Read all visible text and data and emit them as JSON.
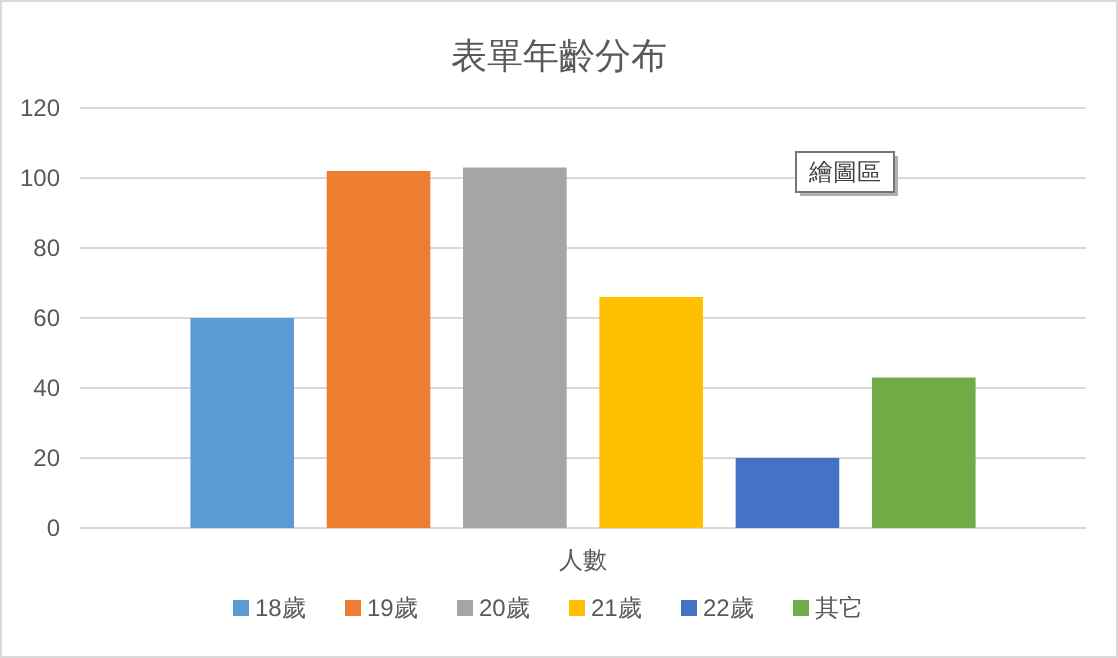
{
  "chart_data": {
    "type": "bar",
    "title": "表單年齡分布",
    "categories": [
      "人數"
    ],
    "series": [
      {
        "name": "18歲",
        "color": "#5b9bd5",
        "values": [
          60
        ]
      },
      {
        "name": "19歲",
        "color": "#ed7d31",
        "values": [
          102
        ]
      },
      {
        "name": "20歲",
        "color": "#a5a5a5",
        "values": [
          103
        ]
      },
      {
        "name": "21歲",
        "color": "#ffc000",
        "values": [
          66
        ]
      },
      {
        "name": "22歲",
        "color": "#4472c4",
        "values": [
          20
        ]
      },
      {
        "name": "其它",
        "color": "#70ad47",
        "values": [
          43
        ]
      }
    ],
    "ylim": [
      0,
      120
    ],
    "yticks": [
      0,
      20,
      40,
      60,
      80,
      100,
      120
    ],
    "grid": "y",
    "legend": "bottom",
    "annotations": [
      "繪圖區"
    ]
  }
}
